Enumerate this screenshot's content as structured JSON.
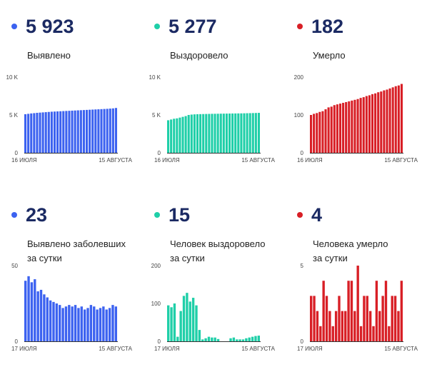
{
  "panels": [
    {
      "id": "cases-total",
      "value": "5 923",
      "label": "Выявлено",
      "color": "#3c62f0",
      "chart_data": {
        "type": "bar",
        "x_start_label": "16 ИЮЛЯ",
        "x_end_label": "15 АВГУСТА",
        "y_ticks": [
          {
            "v": 0,
            "t": "0"
          },
          {
            "v": 5000,
            "t": "5 K"
          },
          {
            "v": 10000,
            "t": "10 K"
          }
        ],
        "ylim": [
          0,
          10000
        ],
        "values": [
          5100,
          5150,
          5200,
          5240,
          5280,
          5310,
          5340,
          5370,
          5400,
          5430,
          5450,
          5470,
          5490,
          5510,
          5530,
          5550,
          5570,
          5590,
          5610,
          5630,
          5650,
          5670,
          5690,
          5710,
          5730,
          5750,
          5770,
          5790,
          5810,
          5840,
          5870,
          5923
        ]
      }
    },
    {
      "id": "recovered-total",
      "value": "5 277",
      "label": "Выздоровело",
      "color": "#1fcfa8",
      "chart_data": {
        "type": "bar",
        "x_start_label": "16 ИЮЛЯ",
        "x_end_label": "15 АВГУСТА",
        "y_ticks": [
          {
            "v": 0,
            "t": "0"
          },
          {
            "v": 5000,
            "t": "5 K"
          },
          {
            "v": 10000,
            "t": "10 K"
          }
        ],
        "ylim": [
          0,
          10000
        ],
        "values": [
          4300,
          4400,
          4500,
          4550,
          4650,
          4750,
          4850,
          5000,
          5050,
          5080,
          5100,
          5110,
          5120,
          5130,
          5140,
          5150,
          5155,
          5160,
          5170,
          5175,
          5180,
          5190,
          5195,
          5200,
          5205,
          5210,
          5220,
          5230,
          5240,
          5250,
          5262,
          5277
        ]
      }
    },
    {
      "id": "deaths-total",
      "value": "182",
      "label": "Умерло",
      "color": "#d81f26",
      "chart_data": {
        "type": "bar",
        "x_start_label": "16 ИЮЛЯ",
        "x_end_label": "15 АВГУСТА",
        "y_ticks": [
          {
            "v": 0,
            "t": "0"
          },
          {
            "v": 100,
            "t": "100"
          },
          {
            "v": 200,
            "t": "200"
          }
        ],
        "ylim": [
          0,
          200
        ],
        "values": [
          100,
          103,
          105,
          108,
          110,
          115,
          120,
          122,
          126,
          128,
          130,
          132,
          134,
          136,
          138,
          140,
          142,
          145,
          147,
          150,
          152,
          155,
          157,
          160,
          162,
          165,
          167,
          170,
          173,
          176,
          178,
          182
        ]
      }
    },
    {
      "id": "cases-daily",
      "value": "23",
      "label": "Выявлено заболевших\nза сутки",
      "color": "#3c62f0",
      "chart_data": {
        "type": "bar",
        "x_start_label": "17 ИЮЛЯ",
        "x_end_label": "15 АВГУСТА",
        "y_ticks": [
          {
            "v": 0,
            "t": "0"
          },
          {
            "v": 50,
            "t": "50"
          }
        ],
        "ylim": [
          0,
          50
        ],
        "values": [
          40,
          43,
          39,
          41,
          33,
          34,
          31,
          29,
          27,
          26,
          25,
          24,
          22,
          23,
          24,
          23,
          24,
          22,
          23,
          21,
          22,
          24,
          23,
          21,
          22,
          23,
          21,
          22,
          24,
          23
        ]
      }
    },
    {
      "id": "recovered-daily",
      "value": "15",
      "label": "Человек выздоровело\nза сутки",
      "color": "#1fcfa8",
      "chart_data": {
        "type": "bar",
        "x_start_label": "17 ИЮЛЯ",
        "x_end_label": "15 АВГУСТА",
        "y_ticks": [
          {
            "v": 0,
            "t": "0"
          },
          {
            "v": 100,
            "t": "100"
          },
          {
            "v": 200,
            "t": "200"
          }
        ],
        "ylim": [
          0,
          200
        ],
        "values": [
          95,
          90,
          100,
          12,
          80,
          120,
          128,
          105,
          115,
          95,
          30,
          5,
          8,
          12,
          10,
          10,
          6,
          0,
          0,
          0,
          8,
          10,
          5,
          5,
          5,
          8,
          10,
          12,
          14,
          15
        ]
      }
    },
    {
      "id": "deaths-daily",
      "value": "4",
      "label": "Человека умерло\nза сутки",
      "color": "#d81f26",
      "chart_data": {
        "type": "bar",
        "x_start_label": "17 ИЮЛЯ",
        "x_end_label": "15 АВГУСТА",
        "y_ticks": [
          {
            "v": 0,
            "t": "0"
          },
          {
            "v": 5,
            "t": "5"
          }
        ],
        "ylim": [
          0,
          5
        ],
        "values": [
          3,
          3,
          2,
          1,
          4,
          3,
          2,
          1,
          2,
          3,
          2,
          2,
          4,
          4,
          2,
          5,
          1,
          3,
          3,
          2,
          1,
          4,
          2,
          3,
          4,
          1,
          3,
          3,
          2,
          4
        ]
      }
    }
  ]
}
